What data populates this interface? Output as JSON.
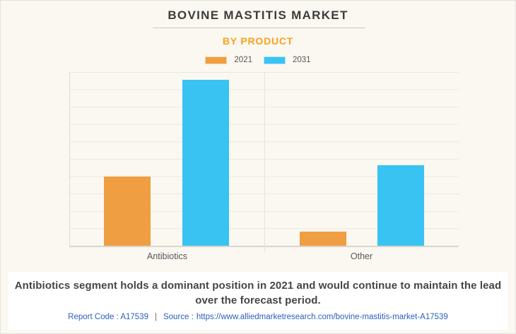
{
  "page": {
    "title": "BOVINE MASTITIS MARKET",
    "subtitle": "BY PRODUCT"
  },
  "legend": [
    {
      "label": "2021",
      "color": "#ef9e41"
    },
    {
      "label": "2031",
      "color": "#38c3f2"
    }
  ],
  "chart_data": {
    "type": "bar",
    "title": "BOVINE MASTITIS MARKET",
    "subtitle": "BY PRODUCT",
    "categories": [
      "Antibiotics",
      "Other"
    ],
    "series": [
      {
        "name": "2021",
        "color": "#ef9e41",
        "values": [
          39.8,
          8.1
        ]
      },
      {
        "name": "2031",
        "color": "#38c3f2",
        "values": [
          95.5,
          46.3
        ]
      }
    ],
    "xlabel": "",
    "ylabel": "",
    "ylim": [
      0,
      100
    ],
    "grid": true,
    "legend_position": "top"
  },
  "footer": {
    "summary": "Antibiotics segment holds a dominant position in 2021 and would continue to maintain the lead over the forecast period.",
    "report_code_label": "Report Code : A17539",
    "separator": "|",
    "source_label": "Source :",
    "source_url": "https://www.alliedmarketresearch.com/bovine-mastitis-market-A17539"
  },
  "colors": {
    "background": "#faf8f1",
    "footer_background": "#ffffff",
    "title_text": "#3c3c3c",
    "subtitle_orange": "#f6a21d",
    "bar_2021_orange": "#ef9e41",
    "bar_2031_blue": "#38c3f2",
    "axis_label_gray": "#54565a",
    "summary_text": "#464646",
    "link_blue": "#2a5fbe",
    "gridline": "#ebe8e1"
  }
}
